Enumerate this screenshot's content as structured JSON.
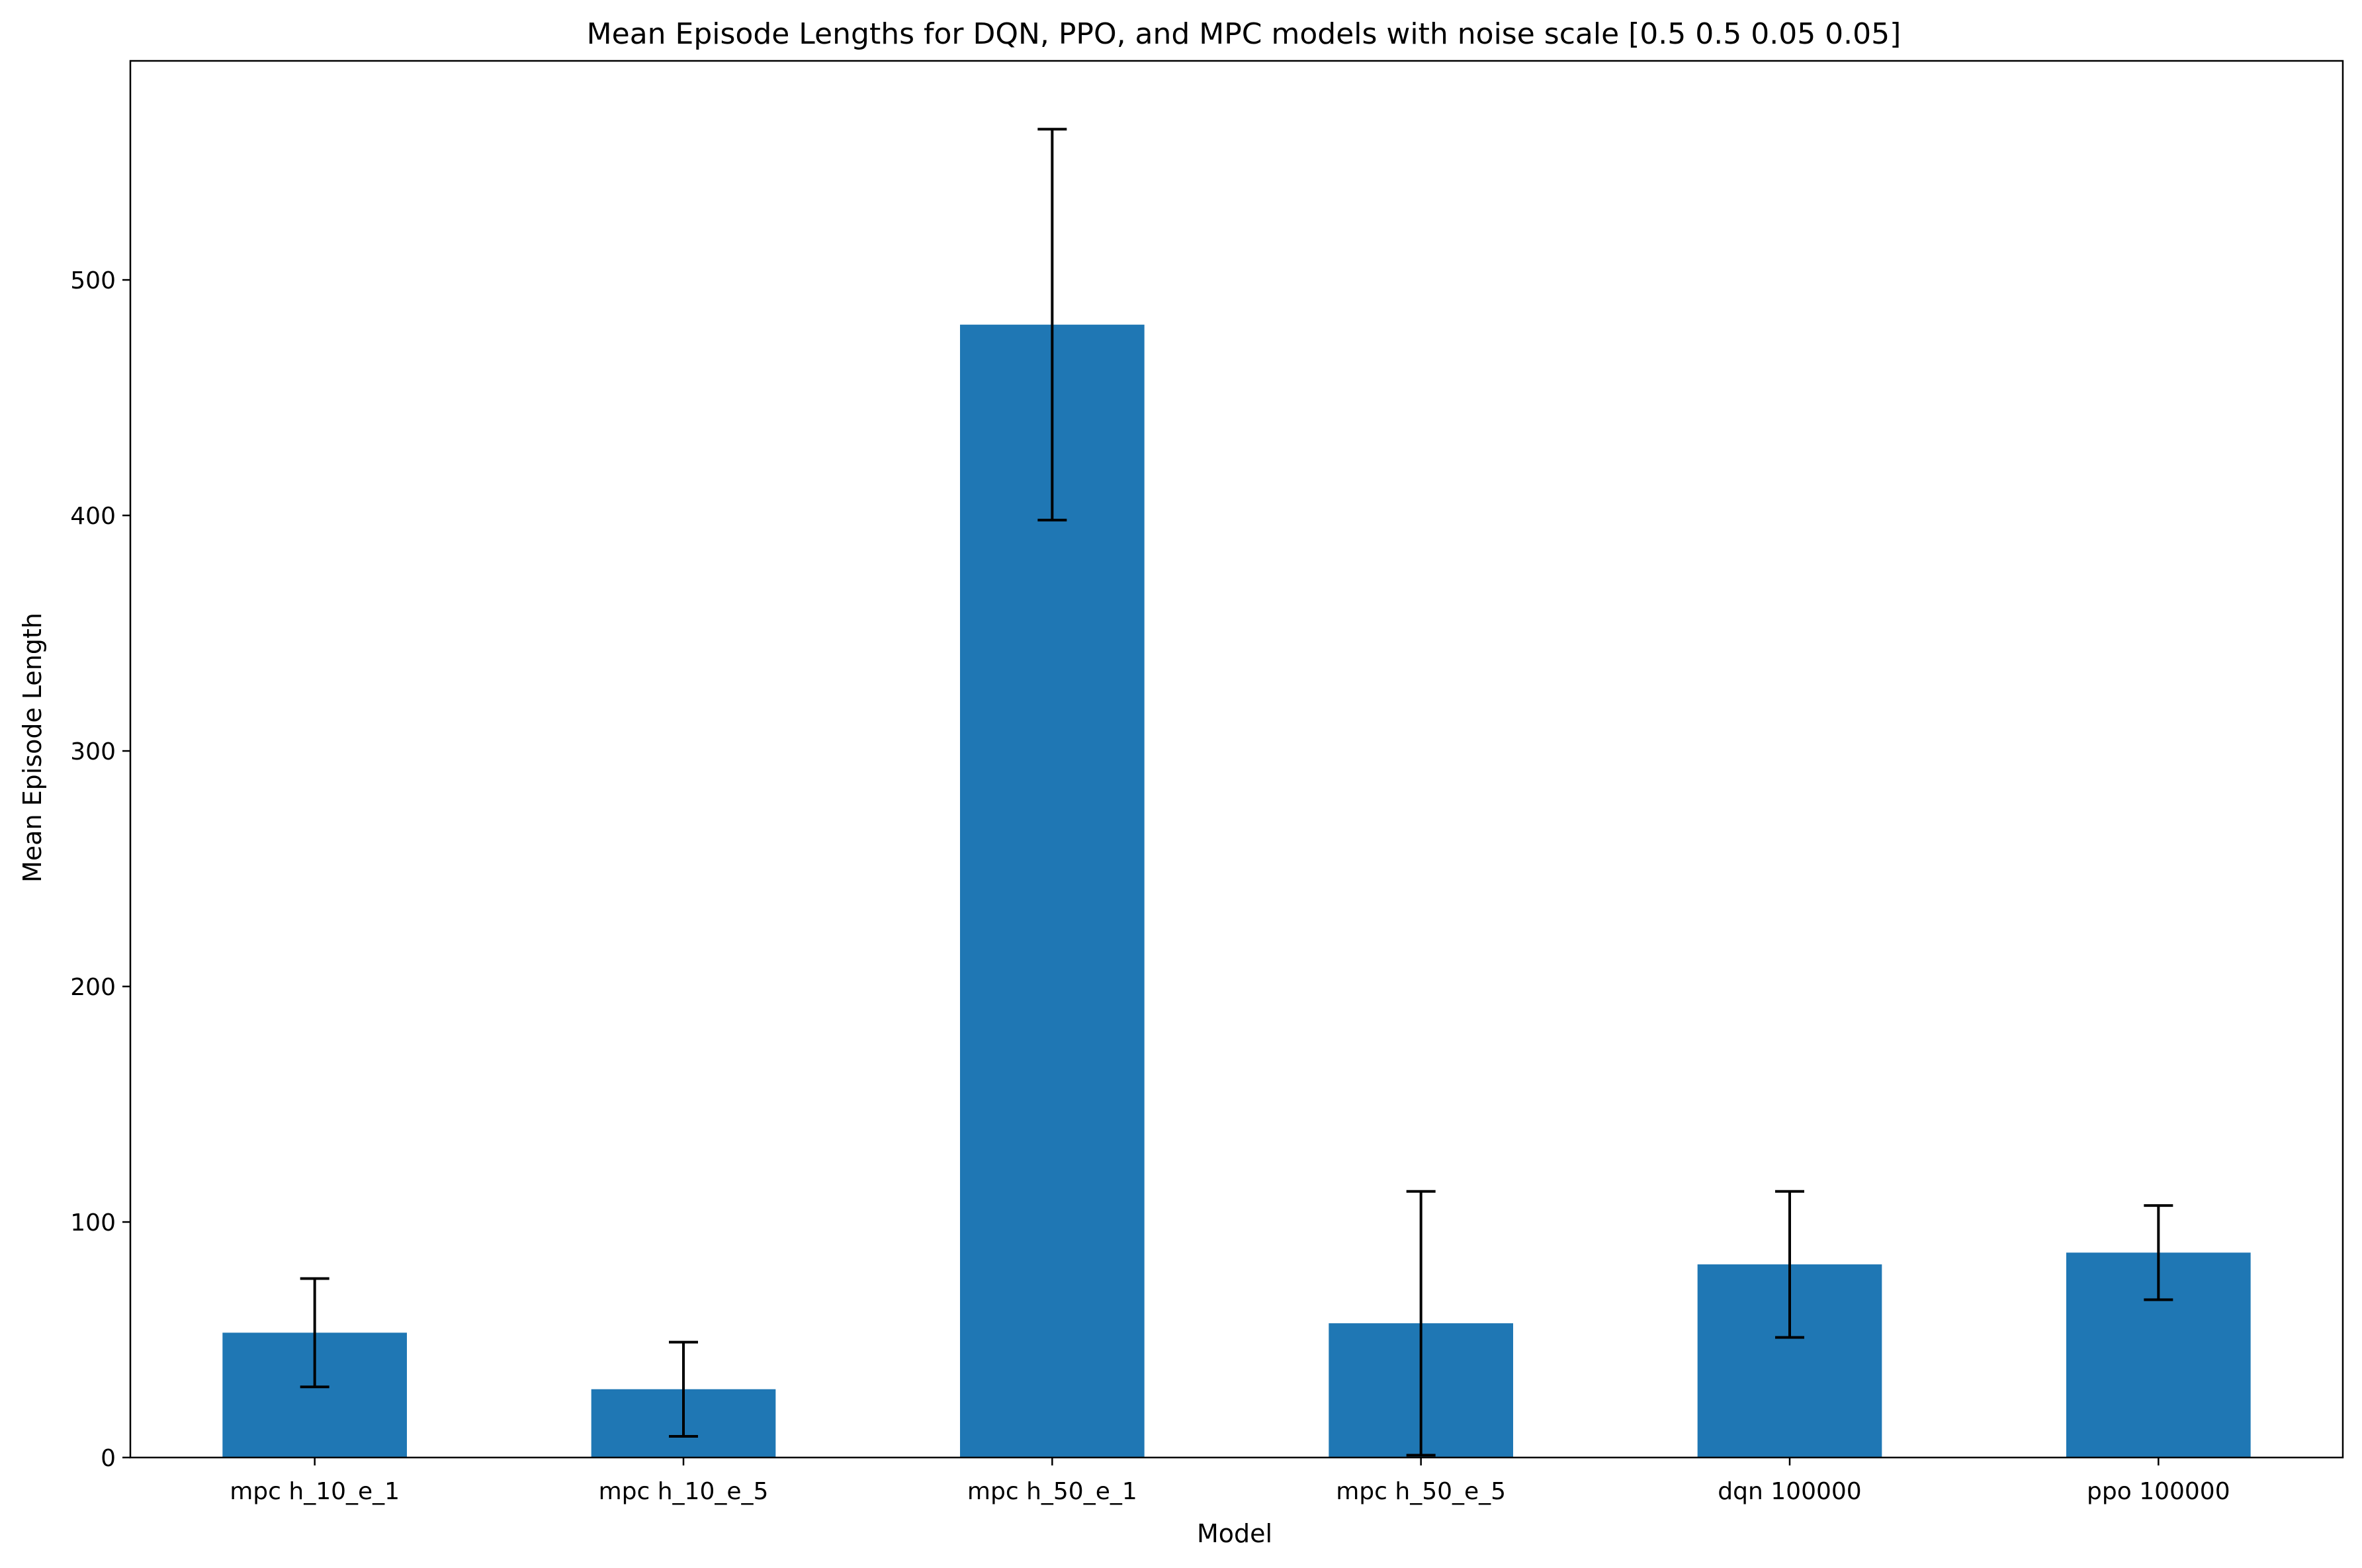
{
  "chart_data": {
    "type": "bar",
    "title": "Mean Episode Lengths for DQN, PPO, and MPC models with noise scale [0.5  0.5  0.05 0.05]",
    "xlabel": "Model",
    "ylabel": "Mean Episode Length",
    "categories": [
      "mpc h_10_e_1",
      "mpc h_10_e_5",
      "mpc h_50_e_1",
      "mpc h_50_e_5",
      "dqn 100000",
      "ppo 100000"
    ],
    "series": [
      {
        "name": "Mean Episode Length",
        "values": [
          53,
          29,
          481,
          57,
          82,
          87
        ],
        "error": [
          23,
          20,
          83,
          56,
          31,
          20
        ]
      }
    ],
    "ylim": [
      0,
      593
    ],
    "yticks": [
      0,
      100,
      200,
      300,
      400,
      500
    ],
    "grid": false,
    "colors": {
      "bar": "#1f77b4",
      "error_bar": "#000000",
      "axis": "#000000"
    }
  }
}
